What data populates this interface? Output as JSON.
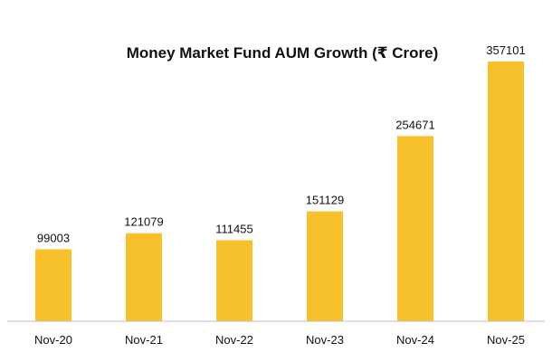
{
  "chart_data": {
    "type": "bar",
    "title": "Money Market Fund AUM Growth (₹ Crore)",
    "xlabel": "",
    "ylabel": "",
    "categories": [
      "Nov-20",
      "Nov-21",
      "Nov-22",
      "Nov-23",
      "Nov-24",
      "Nov-25"
    ],
    "values": [
      99003,
      121079,
      111455,
      151129,
      254671,
      357101
    ],
    "data_labels": [
      "99003",
      "121079",
      "111455",
      "151129",
      "254671",
      "357101"
    ],
    "ylim": [
      0,
      357101
    ],
    "grid": false,
    "legend": "none",
    "bar_color": "#F7C12B",
    "axis_color": "#BFBFBF"
  }
}
